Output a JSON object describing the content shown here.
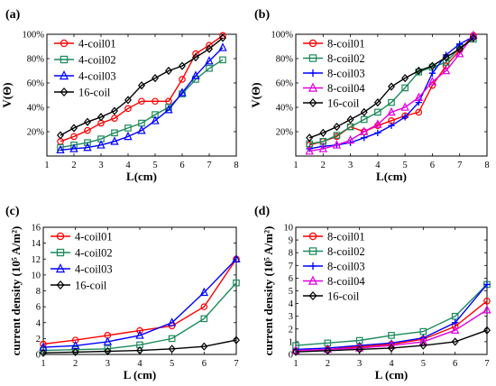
{
  "chart_data": [
    {
      "panel_label": "(a)",
      "type": "line",
      "xlabel": "L(cm)",
      "ylabel": "V(Θ)",
      "xlim": [
        1,
        8
      ],
      "ylim": [
        0,
        100
      ],
      "xticks": [
        "1",
        "2",
        "3",
        "4",
        "5",
        "6",
        "7",
        "8"
      ],
      "yticks": [
        "20%",
        "40%",
        "60%",
        "80%",
        "100%"
      ],
      "ytick_values": [
        20,
        40,
        60,
        80,
        100
      ],
      "legend_position": "top-left",
      "series": [
        {
          "name": "4-coil01",
          "color": "#ff0000",
          "marker": "circle",
          "x": [
            1.5,
            2,
            2.5,
            3,
            3.5,
            4,
            4.5,
            5,
            5.5,
            6,
            6.5,
            7,
            7.5
          ],
          "y": [
            12,
            16,
            21,
            27,
            31,
            39,
            45,
            45,
            45,
            63,
            84,
            91,
            99
          ]
        },
        {
          "name": "4-coil02",
          "color": "#1a8a5a",
          "marker": "square",
          "x": [
            1.5,
            2,
            2.5,
            3,
            3.5,
            4,
            4.5,
            5,
            5.5,
            6,
            6.5,
            7,
            7.5
          ],
          "y": [
            7,
            9,
            11,
            14,
            19,
            23,
            27,
            34,
            40,
            51,
            63,
            72,
            79
          ]
        },
        {
          "name": "4-coil03",
          "color": "#0000ff",
          "marker": "triangle",
          "x": [
            1.5,
            2,
            2.5,
            3,
            3.5,
            4,
            4.5,
            5,
            5.5,
            6,
            6.5,
            7,
            7.5
          ],
          "y": [
            5,
            6,
            7,
            9,
            12,
            16,
            21,
            29,
            38,
            52,
            66,
            78,
            89
          ]
        },
        {
          "name": "16-coil",
          "color": "#000000",
          "marker": "diamond",
          "x": [
            1.5,
            2,
            2.5,
            3,
            3.5,
            4,
            4.5,
            5,
            5.5,
            6,
            6.5,
            7,
            7.5
          ],
          "y": [
            17,
            23,
            28,
            32,
            37,
            46,
            58,
            64,
            70,
            74,
            81,
            88,
            97
          ]
        }
      ]
    },
    {
      "panel_label": "(b)",
      "type": "line",
      "xlabel": "L(cm)",
      "ylabel": "V(Θ)",
      "xlim": [
        1,
        8
      ],
      "ylim": [
        0,
        100
      ],
      "xticks": [
        "1",
        "2",
        "3",
        "4",
        "5",
        "6",
        "7",
        "8"
      ],
      "yticks": [
        "20%",
        "40%",
        "60%",
        "80%",
        "100%"
      ],
      "ytick_values": [
        20,
        40,
        60,
        80,
        100
      ],
      "legend_position": "top-left",
      "series": [
        {
          "name": "8-coil01",
          "color": "#ff0000",
          "marker": "circle",
          "x": [
            1.5,
            2,
            2.5,
            3,
            3.5,
            4,
            4.5,
            5,
            5.5,
            6,
            6.5,
            7,
            7.5
          ],
          "y": [
            9,
            12,
            16,
            24,
            20,
            25,
            29,
            33,
            36,
            58,
            74,
            87,
            99
          ]
        },
        {
          "name": "8-coil02",
          "color": "#1a8a5a",
          "marker": "square",
          "x": [
            1.5,
            2,
            2.5,
            3,
            3.5,
            4,
            4.5,
            5,
            5.5,
            6,
            6.5,
            7,
            7.5
          ],
          "y": [
            10,
            12,
            17,
            24,
            30,
            36,
            44,
            56,
            69,
            73,
            77,
            89,
            96
          ]
        },
        {
          "name": "8-coil03",
          "color": "#0000ff",
          "marker": "plus",
          "x": [
            1.5,
            2,
            2.5,
            3,
            3.5,
            4,
            4.5,
            5,
            5.5,
            6,
            6.5,
            7,
            7.5
          ],
          "y": [
            6,
            8,
            9,
            11,
            15,
            19,
            25,
            32,
            44,
            68,
            83,
            92,
            98
          ]
        },
        {
          "name": "8-coil04",
          "color": "#e000e0",
          "marker": "triangle",
          "x": [
            1.5,
            2,
            2.5,
            3,
            3.5,
            4,
            4.5,
            5,
            5.5,
            6,
            6.5,
            7,
            7.5
          ],
          "y": [
            4,
            6,
            9,
            13,
            20,
            26,
            36,
            40,
            48,
            61,
            70,
            84,
            99
          ]
        },
        {
          "name": "16-coil",
          "color": "#000000",
          "marker": "diamond",
          "x": [
            1.5,
            2,
            2.5,
            3,
            3.5,
            4,
            4.5,
            5,
            5.5,
            6,
            6.5,
            7,
            7.5
          ],
          "y": [
            15,
            19,
            24,
            30,
            36,
            44,
            57,
            64,
            70,
            74,
            81,
            88,
            97
          ]
        }
      ]
    },
    {
      "panel_label": "(c)",
      "type": "line",
      "xlabel": "L (cm)",
      "ylabel": "current density (10⁵ A/m²)",
      "xlim": [
        1,
        7
      ],
      "ylim": [
        0,
        16
      ],
      "xticks": [
        "1",
        "2",
        "3",
        "4",
        "5",
        "6",
        "7"
      ],
      "yticks": [
        "0",
        "2",
        "4",
        "6",
        "8",
        "10",
        "12",
        "14",
        "16"
      ],
      "ytick_values": [
        0,
        2,
        4,
        6,
        8,
        10,
        12,
        14,
        16
      ],
      "legend_position": "top-left",
      "series": [
        {
          "name": "4-coil01",
          "color": "#ff0000",
          "marker": "circle",
          "x": [
            1,
            2,
            3,
            4,
            5,
            6,
            7
          ],
          "y": [
            1.3,
            1.8,
            2.4,
            3.0,
            3.6,
            6.0,
            12.0
          ]
        },
        {
          "name": "4-coil02",
          "color": "#1a8a5a",
          "marker": "square",
          "x": [
            1,
            2,
            3,
            4,
            5,
            6,
            7
          ],
          "y": [
            0.5,
            0.6,
            0.7,
            1.2,
            2.0,
            4.5,
            9.0
          ]
        },
        {
          "name": "4-coil03",
          "color": "#0000ff",
          "marker": "triangle",
          "x": [
            1,
            2,
            3,
            4,
            5,
            6,
            7
          ],
          "y": [
            0.9,
            1.1,
            1.6,
            2.4,
            4.0,
            7.8,
            12.0
          ]
        },
        {
          "name": "16-coil",
          "color": "#000000",
          "marker": "diamond",
          "x": [
            1,
            2,
            3,
            4,
            5,
            6,
            7
          ],
          "y": [
            0.2,
            0.3,
            0.4,
            0.5,
            0.7,
            1.0,
            1.8
          ]
        }
      ]
    },
    {
      "panel_label": "(d)",
      "type": "line",
      "xlabel": "L (cm)",
      "ylabel": "current density (10⁵ A/m²)",
      "xlim": [
        1,
        7
      ],
      "ylim": [
        0,
        10
      ],
      "xticks": [
        "1",
        "2",
        "3",
        "4",
        "5",
        "6",
        "7"
      ],
      "yticks": [
        "0",
        "1",
        "2",
        "3",
        "4",
        "5",
        "6",
        "7",
        "8",
        "9",
        "10"
      ],
      "ytick_values": [
        0,
        1,
        2,
        3,
        4,
        5,
        6,
        7,
        8,
        9,
        10
      ],
      "legend_position": "top-left",
      "series": [
        {
          "name": "8-coil01",
          "color": "#ff0000",
          "marker": "circle",
          "x": [
            1,
            2,
            3,
            4,
            5,
            6,
            7
          ],
          "y": [
            0.3,
            0.4,
            0.6,
            0.8,
            1.2,
            2.2,
            4.2
          ]
        },
        {
          "name": "8-coil02",
          "color": "#1a8a5a",
          "marker": "square",
          "x": [
            1,
            2,
            3,
            4,
            5,
            6,
            7
          ],
          "y": [
            0.7,
            0.9,
            1.1,
            1.5,
            1.8,
            3.0,
            5.5
          ]
        },
        {
          "name": "8-coil03",
          "color": "#0000ff",
          "marker": "plus",
          "x": [
            1,
            2,
            3,
            4,
            5,
            6,
            7
          ],
          "y": [
            0.4,
            0.5,
            0.7,
            0.9,
            1.3,
            2.5,
            5.5
          ]
        },
        {
          "name": "8-coil04",
          "color": "#e000e0",
          "marker": "triangle",
          "x": [
            1,
            2,
            3,
            4,
            5,
            6,
            7
          ],
          "y": [
            0.3,
            0.4,
            0.5,
            0.7,
            1.0,
            1.9,
            3.5
          ]
        },
        {
          "name": "16-coil",
          "color": "#000000",
          "marker": "diamond",
          "x": [
            1,
            2,
            3,
            4,
            5,
            6,
            7
          ],
          "y": [
            0.2,
            0.3,
            0.4,
            0.5,
            0.7,
            1.0,
            1.9
          ]
        }
      ]
    }
  ]
}
